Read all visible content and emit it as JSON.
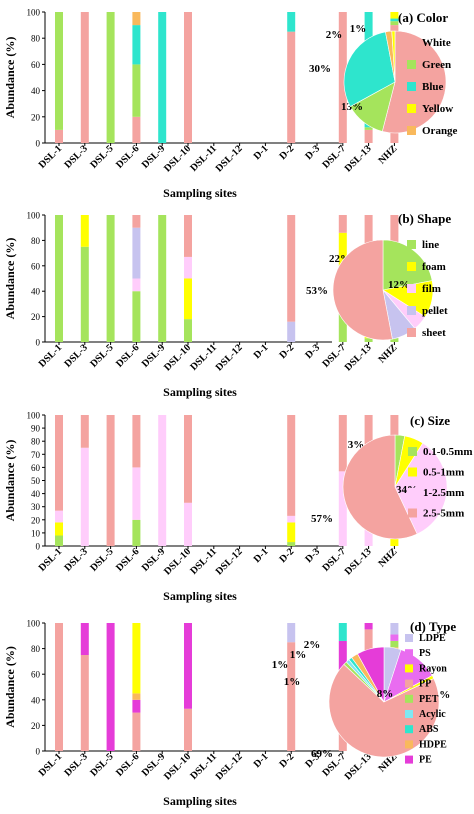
{
  "colors": {
    "white": "#f4a3a0",
    "green": "#a5e45c",
    "blue": "#2ee5cd",
    "yellow": "#ffff00",
    "orange": "#f9b95c",
    "line": "#a5e45c",
    "foam": "#ffff00",
    "film": "#ffcdfb",
    "pellet": "#c7c3ef",
    "sheet": "#f4a3a0",
    "size1": "#a5e45c",
    "size2": "#ffff00",
    "size3": "#ffcdfb",
    "size4": "#f4a3a0",
    "LDPE": "#c7c3ef",
    "PS": "#e96cf0",
    "Rayon": "#ffff00",
    "PP": "#f4a3a0",
    "PET": "#a5e45c",
    "Acylic": "#7ee8f2",
    "ABS": "#2ee5cd",
    "HDPE": "#f9b95c",
    "PE": "#e53cd8"
  },
  "chart_data": [
    {
      "type": "bar",
      "stacked": true,
      "panel": "(a) Color",
      "xlabel": "Sampling sites",
      "ylabel": "Abundance (%)",
      "ylim": [
        0,
        100
      ],
      "yticks": [
        0,
        20,
        40,
        60,
        80,
        100
      ],
      "categories": [
        "DSL-1",
        "DSL-3",
        "DSL-5",
        "DSL-6",
        "DSL-9",
        "DSL-10",
        "DSL-11",
        "DSL-12",
        "D-1",
        "D-2",
        "D-3",
        "DSL-7",
        "DSL-13",
        "NHZ"
      ],
      "series": [
        {
          "name": "White",
          "color": "white",
          "values": [
            10,
            100,
            0,
            20,
            0,
            100,
            0,
            0,
            0,
            85,
            0,
            100,
            10,
            90
          ]
        },
        {
          "name": "Green",
          "color": "green",
          "values": [
            90,
            0,
            100,
            40,
            0,
            0,
            0,
            0,
            0,
            0,
            0,
            0,
            2,
            3
          ]
        },
        {
          "name": "Blue",
          "color": "blue",
          "values": [
            0,
            0,
            0,
            30,
            100,
            0,
            0,
            0,
            0,
            15,
            0,
            0,
            88,
            2
          ]
        },
        {
          "name": "Yellow",
          "color": "yellow",
          "values": [
            0,
            0,
            0,
            0,
            0,
            0,
            0,
            0,
            0,
            0,
            0,
            0,
            0,
            5
          ]
        },
        {
          "name": "Orange",
          "color": "orange",
          "values": [
            0,
            0,
            0,
            10,
            0,
            0,
            0,
            0,
            0,
            0,
            0,
            0,
            0,
            0
          ]
        }
      ],
      "pie": {
        "start": 0,
        "slices": [
          {
            "name": "White",
            "color": "white",
            "value": 54,
            "label": "54%"
          },
          {
            "name": "Green",
            "color": "green",
            "value": 13,
            "label": "13%"
          },
          {
            "name": "Blue",
            "color": "blue",
            "value": 30,
            "label": "30%"
          },
          {
            "name": "Orange",
            "color": "orange",
            "value": 2,
            "label": "2%"
          },
          {
            "name": "Yellow",
            "color": "yellow",
            "value": 1,
            "label": "1%"
          }
        ]
      },
      "legend": [
        {
          "name": "White",
          "color": "white"
        },
        {
          "name": "Green",
          "color": "green"
        },
        {
          "name": "Blue",
          "color": "blue"
        },
        {
          "name": "Yellow",
          "color": "yellow"
        },
        {
          "name": "Orange",
          "color": "orange"
        }
      ]
    },
    {
      "type": "bar",
      "stacked": true,
      "panel": "(b) Shape",
      "xlabel": "Sampling sites",
      "ylabel": "Abundance (%)",
      "ylim": [
        0,
        100
      ],
      "yticks": [
        0,
        20,
        40,
        60,
        80,
        100
      ],
      "categories": [
        "DSL-1",
        "DSL-3",
        "DSL-5",
        "DSL-6",
        "DSL-9",
        "DSL-10",
        "DSL-11",
        "DSL-12",
        "D-1",
        "D-2",
        "D-3",
        "DSL-7",
        "DSL-13",
        "NHZ"
      ],
      "series": [
        {
          "name": "line",
          "color": "line",
          "values": [
            100,
            75,
            100,
            40,
            100,
            18,
            0,
            0,
            0,
            0,
            0,
            58,
            3,
            12
          ]
        },
        {
          "name": "foam",
          "color": "foam",
          "values": [
            0,
            25,
            0,
            0,
            0,
            32,
            0,
            0,
            0,
            0,
            0,
            28,
            5,
            28
          ]
        },
        {
          "name": "film",
          "color": "film",
          "values": [
            0,
            0,
            0,
            10,
            0,
            17,
            0,
            0,
            0,
            0,
            0,
            0,
            0,
            15
          ]
        },
        {
          "name": "pellet",
          "color": "pellet",
          "values": [
            0,
            0,
            0,
            40,
            0,
            0,
            0,
            0,
            0,
            16,
            0,
            0,
            0,
            6
          ]
        },
        {
          "name": "sheet",
          "color": "sheet",
          "values": [
            0,
            0,
            0,
            10,
            0,
            33,
            0,
            0,
            0,
            84,
            0,
            14,
            92,
            39
          ]
        }
      ],
      "pie": {
        "start": 0,
        "slices": [
          {
            "name": "line",
            "color": "line",
            "value": 22,
            "label": "22%"
          },
          {
            "name": "foam",
            "color": "foam",
            "value": 12,
            "label": "12%"
          },
          {
            "name": "film",
            "color": "film",
            "value": 5,
            "label": "5%"
          },
          {
            "name": "pellet",
            "color": "pellet",
            "value": 8,
            "label": "8%"
          },
          {
            "name": "sheet",
            "color": "sheet",
            "value": 53,
            "label": "53%"
          }
        ]
      },
      "legend": [
        {
          "name": "line",
          "color": "line"
        },
        {
          "name": "foam",
          "color": "foam"
        },
        {
          "name": "film",
          "color": "film"
        },
        {
          "name": "pellet",
          "color": "pellet"
        },
        {
          "name": "sheet",
          "color": "sheet"
        }
      ]
    },
    {
      "type": "bar",
      "stacked": true,
      "panel": "(c) Size",
      "xlabel": "Sampling sites",
      "ylabel": "Abundance (%)",
      "ylim": [
        0,
        100
      ],
      "yticks": [
        0,
        10,
        20,
        30,
        40,
        50,
        60,
        70,
        80,
        90,
        100
      ],
      "categories": [
        "DSL-1",
        "DSL-3",
        "DSL-5",
        "DSL-6",
        "DSL-9",
        "DSL-10",
        "DSL-11",
        "DSL-12",
        "D-1",
        "D-2",
        "D-3",
        "DSL-7",
        "DSL-13",
        "NHZ"
      ],
      "series": [
        {
          "name": "0.1-0.5mm",
          "color": "size1",
          "values": [
            8,
            0,
            0,
            20,
            0,
            0,
            0,
            0,
            0,
            3,
            0,
            0,
            0,
            0
          ]
        },
        {
          "name": "0.5-1mm",
          "color": "size2",
          "values": [
            10,
            0,
            0,
            0,
            0,
            0,
            0,
            0,
            0,
            15,
            0,
            0,
            0,
            7
          ]
        },
        {
          "name": "1-2.5mm",
          "color": "size3",
          "values": [
            9,
            75,
            0,
            40,
            100,
            33,
            0,
            0,
            0,
            5,
            0,
            57,
            44,
            47
          ]
        },
        {
          "name": "2.5-5mm",
          "color": "size4",
          "values": [
            73,
            25,
            100,
            40,
            0,
            67,
            0,
            0,
            0,
            77,
            0,
            43,
            56,
            46
          ]
        }
      ],
      "pie": {
        "start": 0,
        "slices": [
          {
            "name": "0.1-0.5mm",
            "color": "size1",
            "value": 3,
            "label": "3%"
          },
          {
            "name": "0.5-1mm",
            "color": "size2",
            "value": 6,
            "label": "6%"
          },
          {
            "name": "1-2.5mm",
            "color": "size3",
            "value": 34,
            "label": "34%"
          },
          {
            "name": "2.5-5mm",
            "color": "size4",
            "value": 57,
            "label": "57%"
          }
        ]
      },
      "legend": [
        {
          "name": "0.1-0.5mm",
          "color": "size1"
        },
        {
          "name": "0.5-1mm",
          "color": "size2"
        },
        {
          "name": "1-2.5mm",
          "color": "size3"
        },
        {
          "name": "2.5-5mm",
          "color": "size4"
        }
      ]
    },
    {
      "type": "bar",
      "stacked": true,
      "panel": "(d) Type",
      "xlabel": "Sampling sites",
      "ylabel": "Abundance (%)",
      "ylim": [
        0,
        100
      ],
      "yticks": [
        0,
        20,
        40,
        60,
        80,
        100
      ],
      "categories": [
        "DSL-1",
        "DSL-3",
        "DSL-5",
        "DSL-6",
        "DSL-9",
        "DSL-10",
        "DSL-11",
        "DSL-12",
        "D-1",
        "D-2",
        "D-3",
        "DSL-7",
        "DSL-13",
        "NHZ"
      ],
      "series": [
        {
          "name": "PP",
          "color": "PP",
          "values": [
            100,
            75,
            0,
            30,
            0,
            33,
            0,
            0,
            0,
            85,
            0,
            57,
            95,
            28
          ]
        },
        {
          "name": "PE",
          "color": "PE",
          "values": [
            0,
            25,
            100,
            10,
            0,
            67,
            0,
            0,
            0,
            0,
            0,
            29,
            5,
            50
          ]
        },
        {
          "name": "HDPE",
          "color": "HDPE",
          "values": [
            0,
            0,
            0,
            5,
            0,
            0,
            0,
            0,
            0,
            0,
            0,
            0,
            0,
            3
          ]
        },
        {
          "name": "Rayon",
          "color": "Rayon",
          "values": [
            0,
            0,
            0,
            55,
            0,
            0,
            0,
            0,
            0,
            0,
            0,
            0,
            0,
            0
          ]
        },
        {
          "name": "ABS",
          "color": "ABS",
          "values": [
            0,
            0,
            0,
            0,
            0,
            0,
            0,
            0,
            0,
            0,
            0,
            14,
            0,
            0
          ]
        },
        {
          "name": "PET",
          "color": "PET",
          "values": [
            0,
            0,
            0,
            0,
            0,
            0,
            0,
            0,
            0,
            0,
            0,
            0,
            0,
            5
          ]
        },
        {
          "name": "PS",
          "color": "PS",
          "values": [
            0,
            0,
            0,
            0,
            0,
            0,
            0,
            0,
            0,
            0,
            0,
            0,
            0,
            5
          ]
        },
        {
          "name": "LDPE",
          "color": "LDPE",
          "values": [
            0,
            0,
            0,
            0,
            0,
            0,
            0,
            0,
            0,
            15,
            0,
            0,
            0,
            9
          ]
        }
      ],
      "pie": {
        "start": 0,
        "slices": [
          {
            "name": "LDPE",
            "color": "LDPE",
            "value": 5,
            "label": "5%"
          },
          {
            "name": "PS",
            "color": "PS",
            "value": 12,
            "label": "12%"
          },
          {
            "name": "Rayon",
            "color": "Rayon",
            "value": 1,
            "label": "1%"
          },
          {
            "name": "PP",
            "color": "PP",
            "value": 69,
            "label": "69%"
          },
          {
            "name": "PET",
            "color": "PET",
            "value": 1,
            "label": "1%"
          },
          {
            "name": "Acylic",
            "color": "Acylic",
            "value": 1,
            "label": "1%"
          },
          {
            "name": "ABS",
            "color": "ABS",
            "value": 1,
            "label": "1%"
          },
          {
            "name": "HDPE",
            "color": "HDPE",
            "value": 2,
            "label": "2%"
          },
          {
            "name": "PE",
            "color": "PE",
            "value": 8,
            "label": "8%"
          }
        ]
      },
      "legend": [
        {
          "name": "LDPE",
          "color": "LDPE"
        },
        {
          "name": "PS",
          "color": "PS"
        },
        {
          "name": "Rayon",
          "color": "Rayon"
        },
        {
          "name": "PP",
          "color": "PP"
        },
        {
          "name": "PET",
          "color": "PET"
        },
        {
          "name": "Acylic",
          "color": "Acylic"
        },
        {
          "name": "ABS",
          "color": "ABS"
        },
        {
          "name": "HDPE",
          "color": "HDPE"
        },
        {
          "name": "PE",
          "color": "PE"
        }
      ]
    }
  ]
}
